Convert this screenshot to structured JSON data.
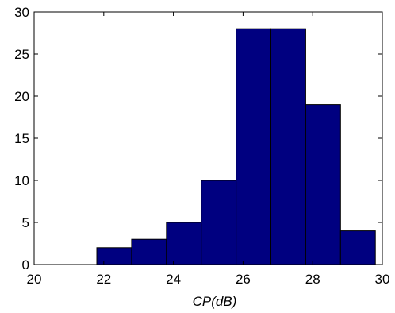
{
  "chart_data": {
    "type": "bar",
    "title": "",
    "xlabel": "CP(dB)",
    "ylabel": "",
    "xlim": [
      20,
      30
    ],
    "ylim": [
      0,
      30
    ],
    "xticks": [
      "20",
      "22",
      "24",
      "26",
      "28",
      "30"
    ],
    "yticks": [
      "0",
      "5",
      "10",
      "15",
      "20",
      "25",
      "30"
    ],
    "grid": false,
    "bar_color": "#000080",
    "bins": [
      {
        "x0": 21.8,
        "x1": 22.8,
        "value": 2
      },
      {
        "x0": 22.8,
        "x1": 23.8,
        "value": 3
      },
      {
        "x0": 23.8,
        "x1": 24.8,
        "value": 5
      },
      {
        "x0": 24.8,
        "x1": 25.8,
        "value": 10
      },
      {
        "x0": 25.8,
        "x1": 26.8,
        "value": 28
      },
      {
        "x0": 26.8,
        "x1": 27.8,
        "value": 28
      },
      {
        "x0": 27.8,
        "x1": 28.8,
        "value": 19
      },
      {
        "x0": 28.8,
        "x1": 29.8,
        "value": 4
      }
    ]
  }
}
